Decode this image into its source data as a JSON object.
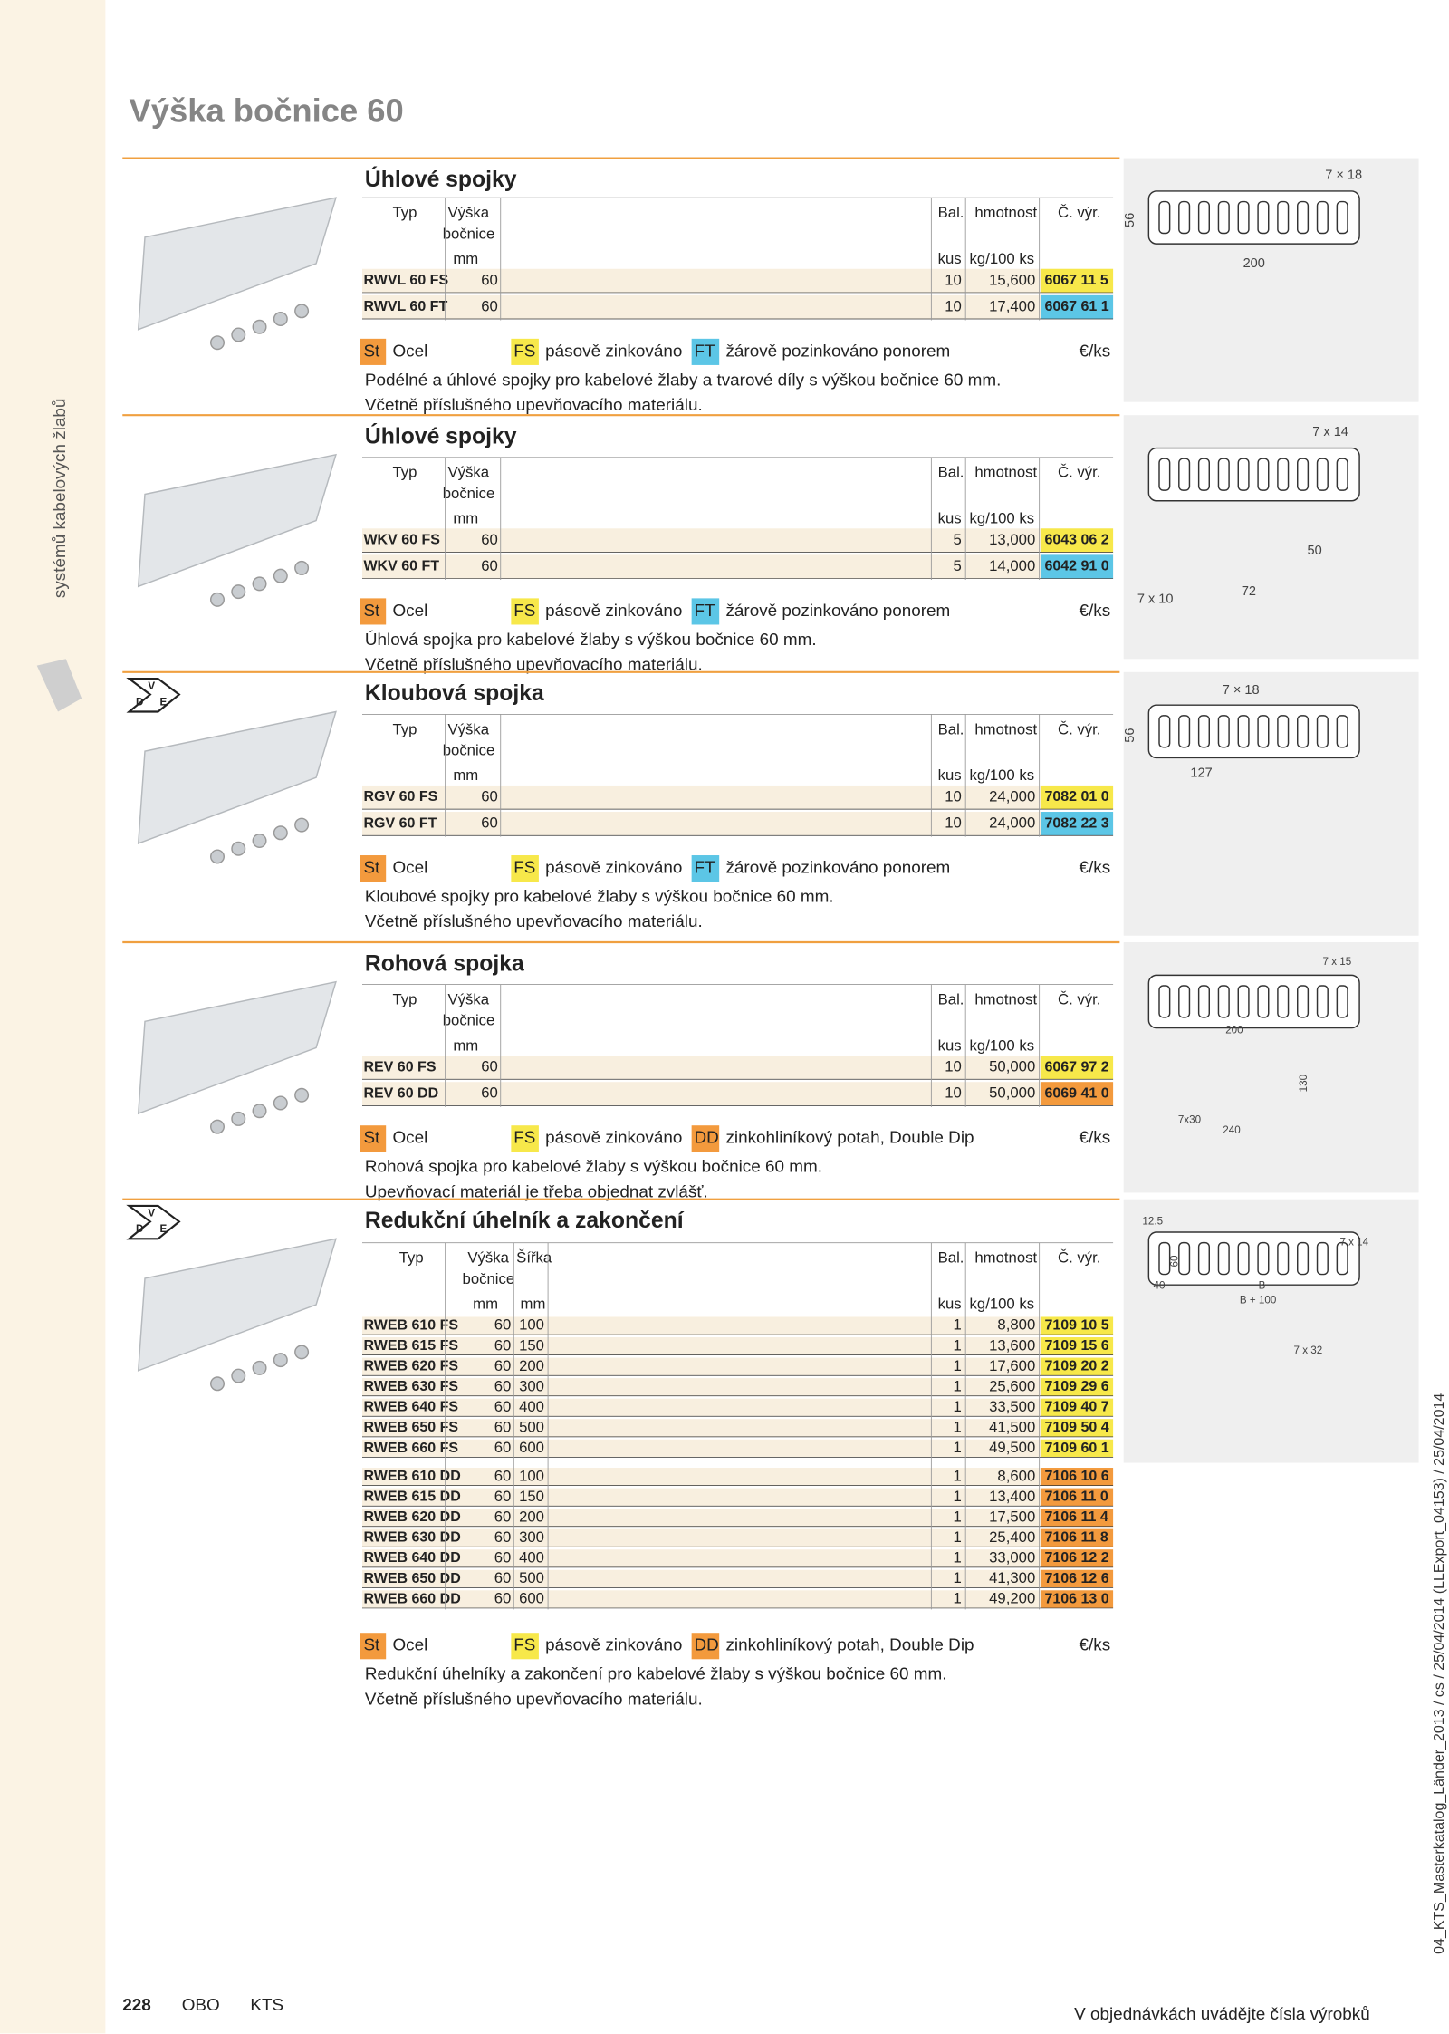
{
  "header": {
    "title": "Výška bočnice 60"
  },
  "sidebar": "systémů kabelových žlabů",
  "doc_id": "04_KTS_Masterkatalog_Länder_2013 / cs / 25/04/2014 (LLExport_04153) / 25/04/2014",
  "columns": {
    "typ": "Typ",
    "vyska": "Výška",
    "bocnice": "bočnice",
    "sirka": "Šířka",
    "bal": "Bal.",
    "hmotnost": "hmotnost",
    "cvyr": "Č. výr.",
    "unit_mm": "mm",
    "unit_kus": "kus",
    "unit_kg": "kg/100 ks"
  },
  "material": {
    "code": "St",
    "label": "Ocel",
    "color": "#f39a3d"
  },
  "price_unit": "€/ks",
  "sections": [
    {
      "title": "Úhlové spojky",
      "finishes": [
        {
          "code": "FS",
          "label": "pásově zinkováno",
          "color": "#f7e84a"
        },
        {
          "code": "FT",
          "label": "žárově pozinkováno ponorem",
          "color": "#5cc6e6"
        }
      ],
      "row_groups": [
        [
          [
            "RWVL 60 FS",
            "60",
            "10",
            "15,600",
            "6067 11 5"
          ],
          [
            "RWVL 60 FT",
            "60",
            "10",
            "17,400",
            "6067 61 1"
          ]
        ]
      ],
      "description": [
        "Podélné a úhlové spojky pro kabelové žlaby a tvarové díly s výškou bočnice 60 mm.",
        "Včetně příslušného upevňovacího materiálu."
      ],
      "diagram_labels": [
        "7 × 18",
        "56",
        "200"
      ]
    },
    {
      "title": "Úhlové spojky",
      "finishes": [
        {
          "code": "FS",
          "label": "pásově zinkováno",
          "color": "#f7e84a"
        },
        {
          "code": "FT",
          "label": "žárově pozinkováno ponorem",
          "color": "#5cc6e6"
        }
      ],
      "row_groups": [
        [
          [
            "WKV 60 FS",
            "60",
            "5",
            "13,000",
            "6043 06 2"
          ],
          [
            "WKV 60 FT",
            "60",
            "5",
            "14,000",
            "6042 91 0"
          ]
        ]
      ],
      "description": [
        "Úhlová spojka pro kabelové žlaby s výškou bočnice 60 mm.",
        "Včetně příslušného upevňovacího materiálu."
      ],
      "diagram_labels": [
        "7 x 14",
        "50",
        "72",
        "7 x 10"
      ]
    },
    {
      "title": "Kloubová spojka",
      "certification": [
        "V",
        "D",
        "E"
      ],
      "finishes": [
        {
          "code": "FS",
          "label": "pásově zinkováno",
          "color": "#f7e84a"
        },
        {
          "code": "FT",
          "label": "žárově pozinkováno ponorem",
          "color": "#5cc6e6"
        }
      ],
      "row_groups": [
        [
          [
            "RGV 60 FS",
            "60",
            "10",
            "24,000",
            "7082 01 0"
          ],
          [
            "RGV 60 FT",
            "60",
            "10",
            "24,000",
            "7082 22 3"
          ]
        ]
      ],
      "description": [
        "Kloubové spojky pro kabelové žlaby s výškou bočnice 60 mm.",
        "Včetně příslušného upevňovacího materiálu."
      ],
      "diagram_labels": [
        "7 × 18",
        "56",
        "127"
      ]
    },
    {
      "title": "Rohová spojka",
      "finishes": [
        {
          "code": "FS",
          "label": "pásově zinkováno",
          "color": "#f7e84a"
        },
        {
          "code": "DD",
          "label": "zinkohliníkový potah, Double Dip",
          "color": "#f39a3d"
        }
      ],
      "row_groups": [
        [
          [
            "REV 60 FS",
            "60",
            "10",
            "50,000",
            "6067 97 2"
          ],
          [
            "REV 60 DD",
            "60",
            "10",
            "50,000",
            "6069 41 0"
          ]
        ]
      ],
      "description": [
        "Rohová spojka pro kabelové žlaby s výškou bočnice 60 mm.",
        "Upevňovací materiál je třeba objednat zvlášť."
      ],
      "diagram_labels": [
        "7 x 15",
        "200",
        "130",
        "7x30",
        "240"
      ]
    },
    {
      "title": "Redukční úhelník a zakončení",
      "certification": [
        "V",
        "D",
        "E"
      ],
      "has_width": true,
      "finishes": [
        {
          "code": "FS",
          "label": "pásově zinkováno",
          "color": "#f7e84a"
        },
        {
          "code": "DD",
          "label": "zinkohliníkový potah, Double Dip",
          "color": "#f39a3d"
        }
      ],
      "row_groups": [
        [
          [
            "RWEB 610 FS",
            "60",
            "100",
            "1",
            "8,800",
            "7109 10 5"
          ],
          [
            "RWEB 615 FS",
            "60",
            "150",
            "1",
            "13,600",
            "7109 15 6"
          ],
          [
            "RWEB 620 FS",
            "60",
            "200",
            "1",
            "17,600",
            "7109 20 2"
          ],
          [
            "RWEB 630 FS",
            "60",
            "300",
            "1",
            "25,600",
            "7109 29 6"
          ],
          [
            "RWEB 640 FS",
            "60",
            "400",
            "1",
            "33,500",
            "7109 40 7"
          ],
          [
            "RWEB 650 FS",
            "60",
            "500",
            "1",
            "41,500",
            "7109 50 4"
          ],
          [
            "RWEB 660 FS",
            "60",
            "600",
            "1",
            "49,500",
            "7109 60 1"
          ]
        ],
        [
          [
            "RWEB 610 DD",
            "60",
            "100",
            "1",
            "8,600",
            "7106 10 6"
          ],
          [
            "RWEB 615 DD",
            "60",
            "150",
            "1",
            "13,400",
            "7106 11 0"
          ],
          [
            "RWEB 620 DD",
            "60",
            "200",
            "1",
            "17,500",
            "7106 11 4"
          ],
          [
            "RWEB 630 DD",
            "60",
            "300",
            "1",
            "25,400",
            "7106 11 8"
          ],
          [
            "RWEB 640 DD",
            "60",
            "400",
            "1",
            "33,000",
            "7106 12 2"
          ],
          [
            "RWEB 650 DD",
            "60",
            "500",
            "1",
            "41,300",
            "7106 12 6"
          ],
          [
            "RWEB 660 DD",
            "60",
            "600",
            "1",
            "49,200",
            "7106 13 0"
          ]
        ]
      ],
      "description": [
        "Redukční úhelníky a zakončení pro kabelové žlaby s výškou bočnice 60 mm.",
        "Včetně příslušného upevňovacího materiálu."
      ],
      "diagram_labels": [
        "12.5",
        "7 x 14",
        "60",
        "40",
        "B",
        "B + 100",
        "7 x 32"
      ]
    }
  ],
  "footer": {
    "page": "228",
    "brand": "OBO",
    "section": "KTS",
    "note": "V objednávkách uvádějte čísla výrobků"
  }
}
